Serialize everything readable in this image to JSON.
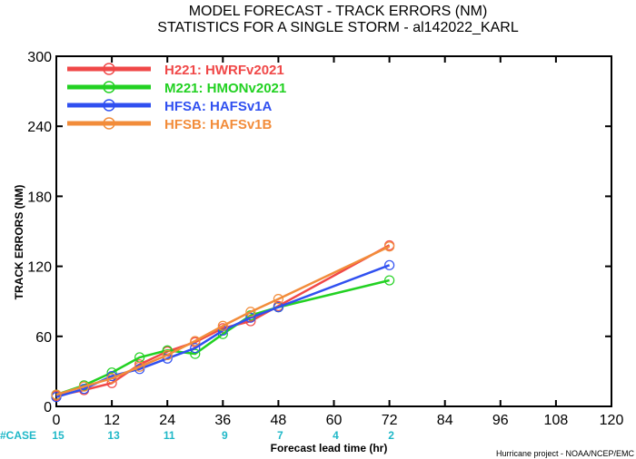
{
  "chart_data": {
    "type": "line",
    "title": "MODEL FORECAST - TRACK ERRORS (NM)",
    "subtitle": "STATISTICS FOR A SINGLE STORM - al142022_KARL",
    "xlabel": "Forecast lead time (hr)",
    "ylabel": "TRACK ERRORS (NM)",
    "xlim": [
      0,
      120
    ],
    "ylim": [
      0,
      300
    ],
    "x_ticks": [
      "0",
      "12",
      "24",
      "36",
      "48",
      "60",
      "72",
      "84",
      "96",
      "108",
      "120"
    ],
    "y_ticks": [
      "0",
      "60",
      "120",
      "180",
      "240",
      "300"
    ],
    "grid": false,
    "legend_position": "top-left",
    "cases_label": "#CASE",
    "cases": [
      {
        "x": 0,
        "n": "15"
      },
      {
        "x": 12,
        "n": "13"
      },
      {
        "x": 24,
        "n": "11"
      },
      {
        "x": 36,
        "n": "9"
      },
      {
        "x": 48,
        "n": "7"
      },
      {
        "x": 60,
        "n": "4"
      },
      {
        "x": 72,
        "n": "2"
      }
    ],
    "footer": "Hurricane project - NOAA/NCEP/EMC",
    "series": [
      {
        "name": "H221:  HWRFv2021",
        "color": "#f04848",
        "x": [
          0,
          6,
          12,
          18,
          24,
          30,
          36,
          42,
          48,
          72
        ],
        "y": [
          9,
          14,
          20,
          36,
          47,
          55,
          67,
          73,
          86,
          138
        ]
      },
      {
        "name": "M221:  HMONv2021",
        "color": "#22d122",
        "x": [
          0,
          6,
          12,
          18,
          24,
          30,
          36,
          42,
          48,
          72
        ],
        "y": [
          10,
          18,
          29,
          42,
          48,
          45,
          62,
          78,
          85,
          108
        ]
      },
      {
        "name": "HFSA:  HAFSv1A",
        "color": "#3050f0",
        "x": [
          0,
          6,
          12,
          18,
          24,
          30,
          36,
          42,
          48,
          72
        ],
        "y": [
          8,
          15,
          26,
          32,
          41,
          50,
          65,
          76,
          85,
          121
        ]
      },
      {
        "name": "HFSB:  HAFSv1B",
        "color": "#f28c3a",
        "x": [
          0,
          6,
          12,
          18,
          24,
          30,
          36,
          42,
          48,
          72
        ],
        "y": [
          10,
          17,
          24,
          34,
          44,
          56,
          69,
          81,
          92,
          137
        ]
      }
    ]
  }
}
